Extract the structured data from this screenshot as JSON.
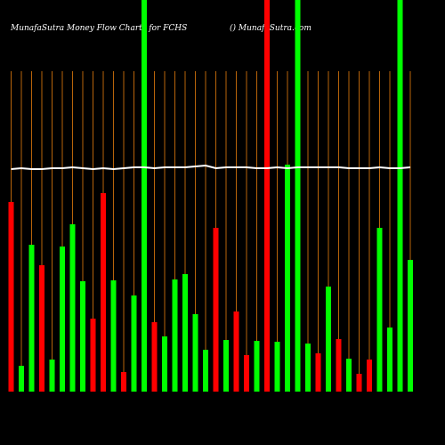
{
  "chart_data": {
    "type": "bar",
    "title": "MunafaSutra  Money Flow  Charts for FCHS",
    "subtitle": "() MunafaSutra.com",
    "categories": [
      null,
      null,
      null,
      null,
      null,
      null,
      null,
      null,
      null,
      null,
      null,
      null,
      null,
      null,
      null,
      null,
      null,
      null,
      null,
      null,
      null,
      null,
      null,
      null,
      null,
      null,
      null,
      null,
      null,
      null,
      null,
      null,
      null,
      null,
      null,
      null,
      null,
      null,
      null,
      null
    ],
    "values": [
      213,
      29,
      165,
      142,
      36,
      163,
      188,
      124,
      82,
      223,
      125,
      22,
      108,
      440,
      78,
      62,
      126,
      132,
      87,
      47,
      184,
      58,
      90,
      41,
      57,
      440,
      56,
      255,
      440,
      54,
      43,
      118,
      59,
      37,
      20,
      36,
      184,
      72,
      440,
      148
    ],
    "colors": [
      "#ff0000",
      "#00ff00",
      "#00ff00",
      "#ff0000",
      "#00ff00",
      "#00ff00",
      "#00ff00",
      "#00ff00",
      "#ff0000",
      "#ff0000",
      "#00ff00",
      "#ff0000",
      "#00ff00",
      "#00ff00",
      "#ff0000",
      "#00ff00",
      "#00ff00",
      "#00ff00",
      "#00ff00",
      "#00ff00",
      "#ff0000",
      "#00ff00",
      "#ff0000",
      "#ff0000",
      "#00ff00",
      "#ff0000",
      "#00ff00",
      "#00ff00",
      "#00ff00",
      "#00ff00",
      "#ff0000",
      "#00ff00",
      "#ff0000",
      "#00ff00",
      "#ff0000",
      "#ff0000",
      "#00ff00",
      "#00ff00",
      "#00ff00",
      "#00ff00"
    ],
    "line": {
      "color": "#ffffff",
      "values": [
        250,
        251,
        250,
        250,
        251,
        251,
        252,
        251,
        250,
        251,
        250,
        251,
        252,
        252,
        251,
        252,
        252,
        252,
        253,
        254,
        251,
        252,
        252,
        252,
        251,
        251,
        252,
        251,
        252,
        252,
        252,
        252,
        252,
        251,
        251,
        251,
        252,
        251,
        251,
        252
      ]
    },
    "grid_color": "#b8640a",
    "ylim": [
      0,
      440
    ]
  }
}
